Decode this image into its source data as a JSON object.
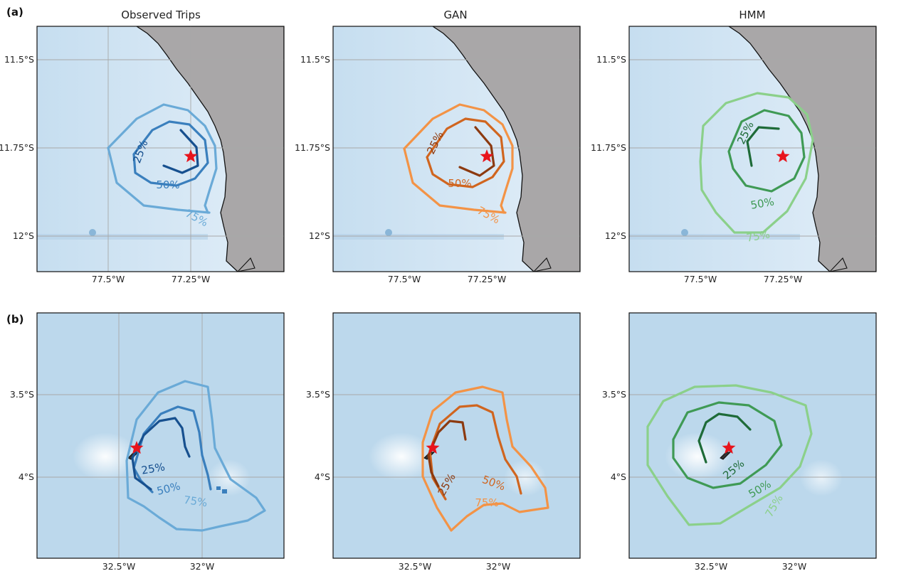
{
  "figure": {
    "row_labels": [
      "(a)",
      "(b)"
    ],
    "column_titles": [
      "Observed Trips",
      "GAN",
      "HMM"
    ]
  },
  "rows": [
    {
      "label": "(a)",
      "lat_ticks": [
        "11.5°S",
        "11.75°S",
        "12°S"
      ],
      "lon_ticks": [
        "77.5°W",
        "77.25°W"
      ],
      "map_extent": {
        "lon_west": 77.7,
        "lon_east": 77.0,
        "lat_north": 11.4,
        "lat_south": 12.1
      },
      "colony_location": {
        "lat": 11.77,
        "lon": 77.26
      },
      "land_color": "#a9a7a8",
      "ocean_color": "#d2e6f4"
    },
    {
      "label": "(b)",
      "lat_ticks": [
        "3.5°S",
        "4°S"
      ],
      "lon_ticks": [
        "32.5°W",
        "32°W"
      ],
      "map_extent": {
        "lon_west": 32.95,
        "lon_east": 31.45,
        "lat_north": 3.0,
        "lat_south": 4.55
      },
      "colony_location": {
        "lat": 3.83,
        "lon": 32.42
      },
      "ocean_color": "#bcd8ec"
    }
  ],
  "models": [
    {
      "name": "Observed Trips",
      "colors": {
        "25%": "#17508f",
        "50%": "#3a7fbd",
        "75%": "#6aaad7"
      }
    },
    {
      "name": "GAN",
      "colors": {
        "25%": "#8c3a10",
        "50%": "#d0651f",
        "75%": "#f39346"
      }
    },
    {
      "name": "HMM",
      "colors": {
        "25%": "#1e6b38",
        "50%": "#3f9a55",
        "75%": "#8bd08a"
      }
    }
  ],
  "contour_levels": [
    "25%",
    "50%",
    "75%"
  ],
  "marker": {
    "name": "colony",
    "symbol": "star",
    "color": "#e8141c"
  }
}
